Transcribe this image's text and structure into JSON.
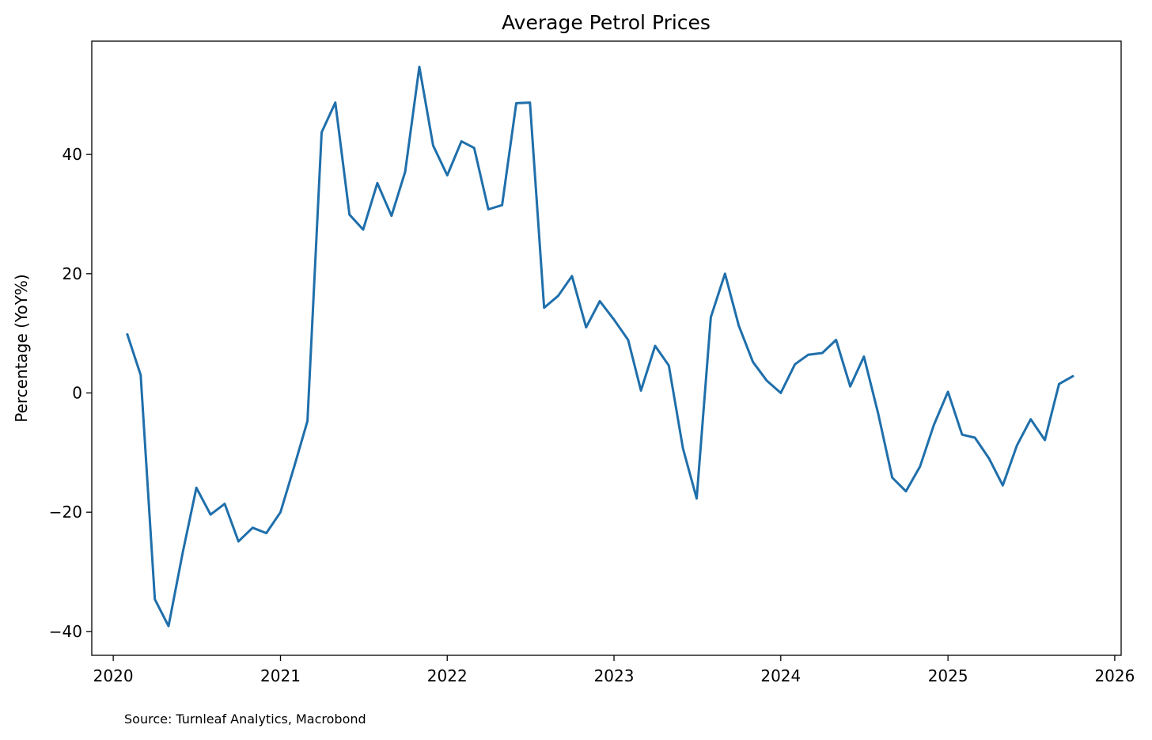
{
  "chart_data": {
    "type": "line",
    "title": "Average Petrol Prices",
    "xlabel": "",
    "ylabel": "Percentage (YoY%)",
    "xlim": [
      "2019-11-15",
      "2026-01-15"
    ],
    "ylim": [
      -44,
      59
    ],
    "xticks": [
      {
        "date": "2020-01-01",
        "label": "2020"
      },
      {
        "date": "2021-01-01",
        "label": "2021"
      },
      {
        "date": "2022-01-01",
        "label": "2022"
      },
      {
        "date": "2023-01-01",
        "label": "2023"
      },
      {
        "date": "2024-01-01",
        "label": "2024"
      },
      {
        "date": "2025-01-01",
        "label": "2025"
      },
      {
        "date": "2026-01-01",
        "label": "2026"
      }
    ],
    "yticks": [
      {
        "value": -40,
        "label": "−40"
      },
      {
        "value": -20,
        "label": "−20"
      },
      {
        "value": 0,
        "label": "0"
      },
      {
        "value": 20,
        "label": "20"
      },
      {
        "value": 40,
        "label": "40"
      }
    ],
    "grid": false,
    "series": [
      {
        "color": "#1f6fab",
        "points": [
          [
            "2020-02-01",
            9.8
          ],
          [
            "2020-03-01",
            3.0
          ],
          [
            "2020-04-01",
            -34.6
          ],
          [
            "2020-05-01",
            -39.1
          ],
          [
            "2020-06-01",
            -26.8
          ],
          [
            "2020-07-01",
            -15.9
          ],
          [
            "2020-08-01",
            -20.4
          ],
          [
            "2020-09-01",
            -18.6
          ],
          [
            "2020-10-01",
            -24.9
          ],
          [
            "2020-11-01",
            -22.6
          ],
          [
            "2020-12-01",
            -23.5
          ],
          [
            "2021-01-01",
            -20.0
          ],
          [
            "2021-02-01",
            -12.1
          ],
          [
            "2021-03-01",
            -4.7
          ],
          [
            "2021-04-01",
            43.7
          ],
          [
            "2021-05-01",
            48.7
          ],
          [
            "2021-06-01",
            29.9
          ],
          [
            "2021-07-01",
            27.4
          ],
          [
            "2021-08-01",
            35.2
          ],
          [
            "2021-09-01",
            29.7
          ],
          [
            "2021-10-01",
            37.1
          ],
          [
            "2021-11-01",
            54.7
          ],
          [
            "2021-12-01",
            41.5
          ],
          [
            "2022-01-01",
            36.5
          ],
          [
            "2022-02-01",
            42.2
          ],
          [
            "2022-03-01",
            41.1
          ],
          [
            "2022-04-01",
            30.8
          ],
          [
            "2022-05-01",
            31.5
          ],
          [
            "2022-06-01",
            48.6
          ],
          [
            "2022-07-01",
            48.7
          ],
          [
            "2022-08-01",
            14.3
          ],
          [
            "2022-09-01",
            16.3
          ],
          [
            "2022-10-01",
            19.6
          ],
          [
            "2022-11-01",
            11.0
          ],
          [
            "2022-12-01",
            15.4
          ],
          [
            "2023-01-01",
            12.3
          ],
          [
            "2023-02-01",
            8.9
          ],
          [
            "2023-03-01",
            0.4
          ],
          [
            "2023-04-01",
            7.9
          ],
          [
            "2023-05-01",
            4.6
          ],
          [
            "2023-06-01",
            -9.3
          ],
          [
            "2023-07-01",
            -17.7
          ],
          [
            "2023-08-01",
            12.7
          ],
          [
            "2023-09-01",
            20.0
          ],
          [
            "2023-10-01",
            11.3
          ],
          [
            "2023-11-01",
            5.2
          ],
          [
            "2023-12-01",
            2.1
          ],
          [
            "2024-01-01",
            0.0
          ],
          [
            "2024-02-01",
            4.8
          ],
          [
            "2024-03-01",
            6.4
          ],
          [
            "2024-04-01",
            6.7
          ],
          [
            "2024-05-01",
            8.9
          ],
          [
            "2024-06-01",
            1.1
          ],
          [
            "2024-07-01",
            6.1
          ],
          [
            "2024-08-01",
            -3.4
          ],
          [
            "2024-09-01",
            -14.2
          ],
          [
            "2024-10-01",
            -16.5
          ],
          [
            "2024-11-01",
            -12.3
          ],
          [
            "2024-12-01",
            -5.4
          ],
          [
            "2025-01-01",
            0.2
          ],
          [
            "2025-02-01",
            -7.0
          ],
          [
            "2025-03-01",
            -7.5
          ],
          [
            "2025-04-01",
            -11.0
          ],
          [
            "2025-05-01",
            -15.5
          ],
          [
            "2025-06-01",
            -8.8
          ],
          [
            "2025-07-01",
            -4.4
          ],
          [
            "2025-08-01",
            -7.9
          ],
          [
            "2025-09-01",
            1.5
          ],
          [
            "2025-10-01",
            2.8
          ]
        ]
      }
    ]
  },
  "footer": {
    "source": "Source: Turnleaf Analytics, Macrobond"
  }
}
